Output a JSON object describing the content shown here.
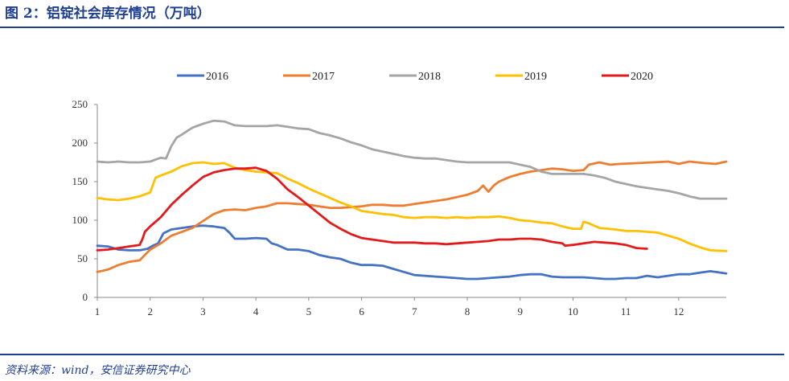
{
  "figure": {
    "title": "图 2：铝锭社会库存情况（万吨）",
    "source": "资料来源：wind，安信证券研究中心"
  },
  "chart_data": {
    "type": "line",
    "title": "",
    "xlabel": "",
    "ylabel": "",
    "xlim": [
      1,
      12.9
    ],
    "ylim": [
      0,
      250
    ],
    "x_ticks": [
      1,
      2,
      3,
      4,
      5,
      6,
      7,
      8,
      9,
      10,
      11,
      12
    ],
    "y_ticks": [
      0,
      50,
      100,
      150,
      200,
      250
    ],
    "grid": false,
    "legend_position": "top",
    "series": [
      {
        "name": "2016",
        "color": "#4472c4",
        "points": [
          [
            1.0,
            67
          ],
          [
            1.2,
            66
          ],
          [
            1.4,
            62
          ],
          [
            1.6,
            61
          ],
          [
            1.8,
            61
          ],
          [
            1.95,
            63
          ],
          [
            2.05,
            67
          ],
          [
            2.15,
            70
          ],
          [
            2.25,
            83
          ],
          [
            2.4,
            88
          ],
          [
            2.6,
            90
          ],
          [
            2.8,
            92
          ],
          [
            3.0,
            93
          ],
          [
            3.2,
            92
          ],
          [
            3.4,
            90
          ],
          [
            3.5,
            84
          ],
          [
            3.6,
            76
          ],
          [
            3.8,
            76
          ],
          [
            4.0,
            77
          ],
          [
            4.2,
            76
          ],
          [
            4.3,
            70
          ],
          [
            4.4,
            68
          ],
          [
            4.6,
            62
          ],
          [
            4.8,
            62
          ],
          [
            5.0,
            60
          ],
          [
            5.2,
            55
          ],
          [
            5.4,
            52
          ],
          [
            5.6,
            50
          ],
          [
            5.8,
            45
          ],
          [
            6.0,
            42
          ],
          [
            6.2,
            42
          ],
          [
            6.4,
            41
          ],
          [
            6.6,
            37
          ],
          [
            6.8,
            33
          ],
          [
            7.0,
            29
          ],
          [
            7.2,
            28
          ],
          [
            7.4,
            27
          ],
          [
            7.6,
            26
          ],
          [
            7.8,
            25
          ],
          [
            8.0,
            24
          ],
          [
            8.2,
            24
          ],
          [
            8.4,
            25
          ],
          [
            8.6,
            26
          ],
          [
            8.8,
            27
          ],
          [
            9.0,
            29
          ],
          [
            9.2,
            30
          ],
          [
            9.4,
            30
          ],
          [
            9.6,
            27
          ],
          [
            9.8,
            26
          ],
          [
            10.0,
            26
          ],
          [
            10.2,
            26
          ],
          [
            10.4,
            25
          ],
          [
            10.6,
            24
          ],
          [
            10.8,
            24
          ],
          [
            11.0,
            25
          ],
          [
            11.2,
            25
          ],
          [
            11.4,
            28
          ],
          [
            11.6,
            26
          ],
          [
            11.8,
            28
          ],
          [
            12.0,
            30
          ],
          [
            12.2,
            30
          ],
          [
            12.4,
            32
          ],
          [
            12.6,
            34
          ],
          [
            12.9,
            31
          ]
        ]
      },
      {
        "name": "2017",
        "color": "#ed7d31",
        "points": [
          [
            1.0,
            33
          ],
          [
            1.2,
            36
          ],
          [
            1.4,
            42
          ],
          [
            1.6,
            46
          ],
          [
            1.8,
            48
          ],
          [
            1.9,
            55
          ],
          [
            2.0,
            62
          ],
          [
            2.2,
            70
          ],
          [
            2.4,
            80
          ],
          [
            2.6,
            85
          ],
          [
            2.8,
            90
          ],
          [
            3.0,
            99
          ],
          [
            3.2,
            108
          ],
          [
            3.4,
            113
          ],
          [
            3.6,
            114
          ],
          [
            3.8,
            113
          ],
          [
            4.0,
            116
          ],
          [
            4.2,
            118
          ],
          [
            4.4,
            122
          ],
          [
            4.6,
            122
          ],
          [
            4.8,
            121
          ],
          [
            5.0,
            120
          ],
          [
            5.2,
            118
          ],
          [
            5.4,
            116
          ],
          [
            5.6,
            116
          ],
          [
            5.8,
            117
          ],
          [
            6.0,
            118
          ],
          [
            6.2,
            120
          ],
          [
            6.4,
            120
          ],
          [
            6.6,
            119
          ],
          [
            6.8,
            119
          ],
          [
            7.0,
            121
          ],
          [
            7.2,
            123
          ],
          [
            7.4,
            125
          ],
          [
            7.6,
            127
          ],
          [
            7.8,
            130
          ],
          [
            8.0,
            133
          ],
          [
            8.2,
            138
          ],
          [
            8.3,
            145
          ],
          [
            8.4,
            137
          ],
          [
            8.5,
            145
          ],
          [
            8.6,
            150
          ],
          [
            8.8,
            156
          ],
          [
            9.0,
            160
          ],
          [
            9.2,
            163
          ],
          [
            9.4,
            165
          ],
          [
            9.6,
            167
          ],
          [
            9.8,
            166
          ],
          [
            10.0,
            164
          ],
          [
            10.2,
            165
          ],
          [
            10.3,
            172
          ],
          [
            10.5,
            175
          ],
          [
            10.7,
            172
          ],
          [
            10.9,
            173
          ],
          [
            11.2,
            174
          ],
          [
            11.5,
            175
          ],
          [
            11.8,
            176
          ],
          [
            12.0,
            173
          ],
          [
            12.2,
            176
          ],
          [
            12.5,
            174
          ],
          [
            12.7,
            173
          ],
          [
            12.9,
            176
          ]
        ]
      },
      {
        "name": "2018",
        "color": "#a5a5a5",
        "points": [
          [
            1.0,
            176
          ],
          [
            1.2,
            175
          ],
          [
            1.4,
            176
          ],
          [
            1.6,
            175
          ],
          [
            1.8,
            175
          ],
          [
            2.0,
            176
          ],
          [
            2.2,
            181
          ],
          [
            2.3,
            180
          ],
          [
            2.4,
            196
          ],
          [
            2.5,
            207
          ],
          [
            2.6,
            211
          ],
          [
            2.8,
            220
          ],
          [
            3.0,
            225
          ],
          [
            3.2,
            229
          ],
          [
            3.4,
            228
          ],
          [
            3.6,
            223
          ],
          [
            3.8,
            222
          ],
          [
            4.0,
            222
          ],
          [
            4.2,
            222
          ],
          [
            4.4,
            223
          ],
          [
            4.6,
            221
          ],
          [
            4.8,
            219
          ],
          [
            5.0,
            218
          ],
          [
            5.2,
            213
          ],
          [
            5.4,
            210
          ],
          [
            5.6,
            206
          ],
          [
            5.8,
            201
          ],
          [
            6.0,
            197
          ],
          [
            6.2,
            192
          ],
          [
            6.4,
            189
          ],
          [
            6.6,
            186
          ],
          [
            6.8,
            183
          ],
          [
            7.0,
            181
          ],
          [
            7.2,
            180
          ],
          [
            7.4,
            180
          ],
          [
            7.6,
            178
          ],
          [
            7.8,
            176
          ],
          [
            8.0,
            175
          ],
          [
            8.2,
            175
          ],
          [
            8.4,
            175
          ],
          [
            8.6,
            175
          ],
          [
            8.8,
            175
          ],
          [
            9.0,
            172
          ],
          [
            9.2,
            169
          ],
          [
            9.4,
            163
          ],
          [
            9.6,
            160
          ],
          [
            9.8,
            160
          ],
          [
            10.0,
            160
          ],
          [
            10.2,
            160
          ],
          [
            10.4,
            158
          ],
          [
            10.6,
            155
          ],
          [
            10.8,
            150
          ],
          [
            11.0,
            147
          ],
          [
            11.2,
            144
          ],
          [
            11.4,
            142
          ],
          [
            11.6,
            140
          ],
          [
            11.8,
            138
          ],
          [
            12.0,
            135
          ],
          [
            12.2,
            131
          ],
          [
            12.4,
            128
          ],
          [
            12.6,
            128
          ],
          [
            12.9,
            128
          ]
        ]
      },
      {
        "name": "2019",
        "color": "#ffc000",
        "points": [
          [
            1.0,
            129
          ],
          [
            1.2,
            127
          ],
          [
            1.4,
            126
          ],
          [
            1.6,
            128
          ],
          [
            1.8,
            131
          ],
          [
            2.0,
            136
          ],
          [
            2.1,
            155
          ],
          [
            2.2,
            158
          ],
          [
            2.4,
            163
          ],
          [
            2.6,
            170
          ],
          [
            2.8,
            174
          ],
          [
            3.0,
            175
          ],
          [
            3.2,
            173
          ],
          [
            3.4,
            174
          ],
          [
            3.6,
            168
          ],
          [
            3.8,
            165
          ],
          [
            4.0,
            163
          ],
          [
            4.2,
            162
          ],
          [
            4.4,
            161
          ],
          [
            4.6,
            154
          ],
          [
            4.8,
            148
          ],
          [
            5.0,
            141
          ],
          [
            5.2,
            135
          ],
          [
            5.4,
            129
          ],
          [
            5.6,
            123
          ],
          [
            5.8,
            118
          ],
          [
            6.0,
            112
          ],
          [
            6.2,
            110
          ],
          [
            6.4,
            108
          ],
          [
            6.6,
            107
          ],
          [
            6.8,
            104
          ],
          [
            7.0,
            103
          ],
          [
            7.2,
            104
          ],
          [
            7.4,
            104
          ],
          [
            7.6,
            103
          ],
          [
            7.8,
            104
          ],
          [
            8.0,
            103
          ],
          [
            8.2,
            104
          ],
          [
            8.4,
            104
          ],
          [
            8.6,
            105
          ],
          [
            8.8,
            103
          ],
          [
            9.0,
            100
          ],
          [
            9.2,
            99
          ],
          [
            9.4,
            97
          ],
          [
            9.6,
            96
          ],
          [
            9.8,
            92
          ],
          [
            10.0,
            89
          ],
          [
            10.15,
            89
          ],
          [
            10.2,
            98
          ],
          [
            10.3,
            96
          ],
          [
            10.5,
            90
          ],
          [
            10.8,
            88
          ],
          [
            11.0,
            86
          ],
          [
            11.2,
            86
          ],
          [
            11.4,
            85
          ],
          [
            11.6,
            84
          ],
          [
            11.8,
            80
          ],
          [
            12.0,
            76
          ],
          [
            12.2,
            70
          ],
          [
            12.4,
            65
          ],
          [
            12.6,
            61
          ],
          [
            12.9,
            60
          ]
        ]
      },
      {
        "name": "2020",
        "color": "#e31a1c",
        "points": [
          [
            1.0,
            61
          ],
          [
            1.2,
            62
          ],
          [
            1.4,
            64
          ],
          [
            1.6,
            66
          ],
          [
            1.8,
            68
          ],
          [
            1.85,
            75
          ],
          [
            1.9,
            85
          ],
          [
            2.0,
            92
          ],
          [
            2.1,
            98
          ],
          [
            2.2,
            104
          ],
          [
            2.4,
            120
          ],
          [
            2.6,
            133
          ],
          [
            2.8,
            145
          ],
          [
            3.0,
            156
          ],
          [
            3.2,
            162
          ],
          [
            3.4,
            165
          ],
          [
            3.6,
            167
          ],
          [
            3.8,
            167
          ],
          [
            4.0,
            168
          ],
          [
            4.2,
            164
          ],
          [
            4.4,
            154
          ],
          [
            4.6,
            140
          ],
          [
            4.8,
            130
          ],
          [
            5.0,
            119
          ],
          [
            5.2,
            108
          ],
          [
            5.4,
            97
          ],
          [
            5.6,
            89
          ],
          [
            5.8,
            82
          ],
          [
            6.0,
            77
          ],
          [
            6.2,
            75
          ],
          [
            6.4,
            73
          ],
          [
            6.6,
            71
          ],
          [
            6.8,
            71
          ],
          [
            7.0,
            71
          ],
          [
            7.2,
            70
          ],
          [
            7.4,
            70
          ],
          [
            7.6,
            69
          ],
          [
            7.8,
            70
          ],
          [
            8.0,
            71
          ],
          [
            8.2,
            72
          ],
          [
            8.4,
            73
          ],
          [
            8.6,
            75
          ],
          [
            8.8,
            75
          ],
          [
            9.0,
            76
          ],
          [
            9.2,
            76
          ],
          [
            9.4,
            75
          ],
          [
            9.6,
            72
          ],
          [
            9.8,
            70
          ],
          [
            9.85,
            67
          ],
          [
            10.0,
            68
          ],
          [
            10.2,
            70
          ],
          [
            10.4,
            72
          ],
          [
            10.6,
            71
          ],
          [
            10.8,
            70
          ],
          [
            11.0,
            68
          ],
          [
            11.2,
            64
          ],
          [
            11.4,
            63
          ]
        ]
      }
    ]
  }
}
